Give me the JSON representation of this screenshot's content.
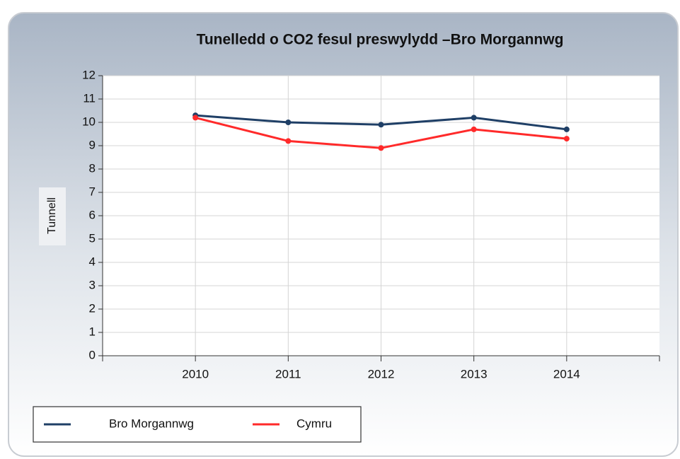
{
  "chart_data": {
    "type": "line",
    "title": "Tunelledd o CO2 fesul preswylydd –Bro Morgannwg",
    "y_label": "Tunnell",
    "x": [
      2010,
      2011,
      2012,
      2013,
      2014
    ],
    "xlim": [
      2009,
      2015
    ],
    "xticks": [
      2010,
      2011,
      2012,
      2013,
      2014
    ],
    "ylim": [
      0,
      12
    ],
    "yticks": [
      0,
      1,
      2,
      3,
      4,
      5,
      6,
      7,
      8,
      9,
      10,
      11,
      12
    ],
    "grid": true,
    "legend": "bottom-left",
    "series": [
      {
        "name": "Bro Morgannwg",
        "color": "#1f3f66",
        "values": [
          10.3,
          10.0,
          9.9,
          10.2,
          9.7
        ]
      },
      {
        "name": "Cymru",
        "color": "#ff2a2a",
        "values": [
          10.2,
          9.2,
          8.9,
          9.7,
          9.3
        ]
      }
    ]
  }
}
